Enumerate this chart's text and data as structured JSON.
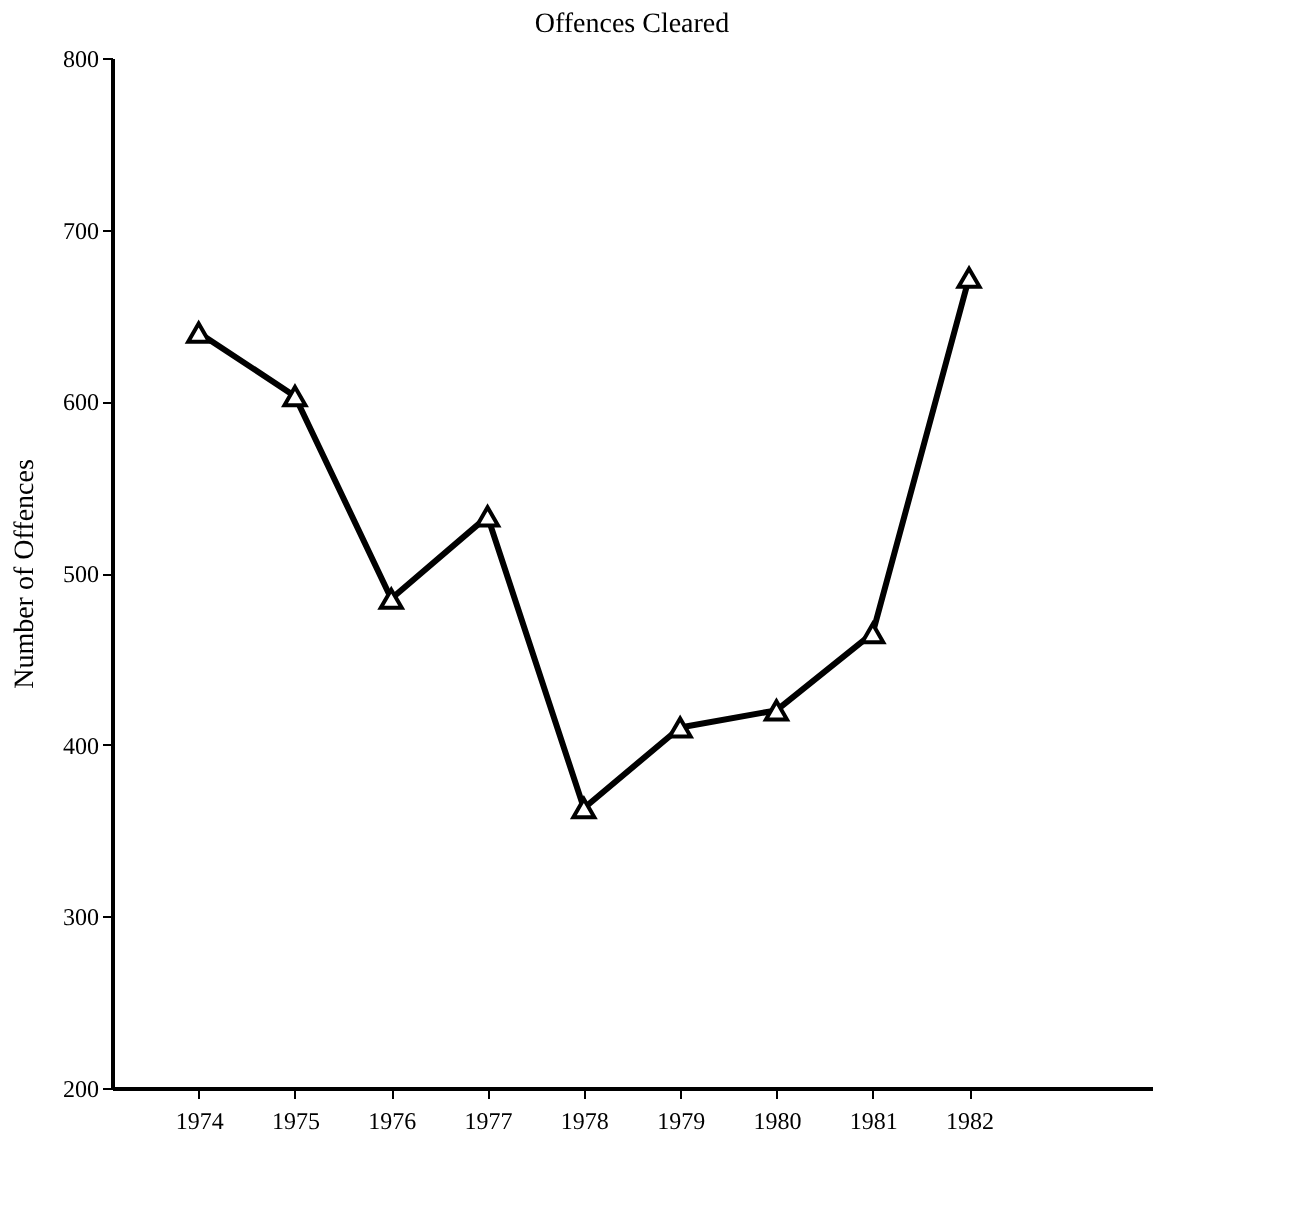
{
  "chart_data": {
    "type": "line",
    "title": "Offences Cleared",
    "ylabel": "Number of Offences",
    "x": [
      1974,
      1975,
      1976,
      1977,
      1978,
      1979,
      1980,
      1981,
      1982
    ],
    "series": [
      {
        "color": "#000000",
        "values": [
          640,
          603,
          485,
          533,
          363,
          410,
          420,
          465,
          672
        ]
      }
    ],
    "xlim": [
      1973.1,
      1983.9
    ],
    "xticks": [
      1974,
      1975,
      1976,
      1977,
      1978,
      1979,
      1980,
      1981,
      1982
    ],
    "ylim": [
      200,
      800
    ],
    "yticks": [
      200,
      300,
      400,
      500,
      600,
      700,
      800
    ],
    "grid": false,
    "marker": "triangle",
    "line_style": "solid"
  }
}
